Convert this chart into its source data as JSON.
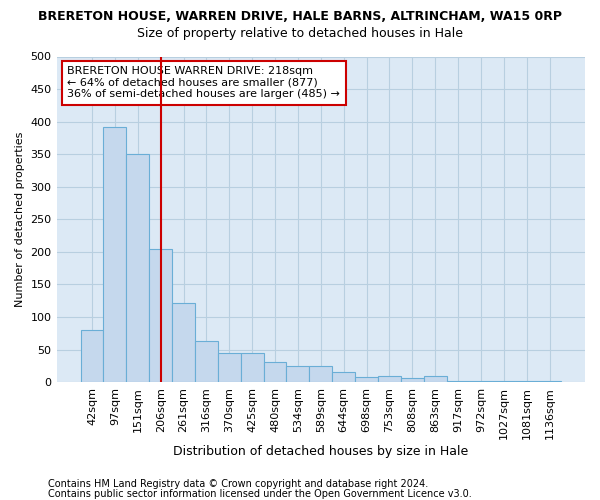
{
  "title1": "BRERETON HOUSE, WARREN DRIVE, HALE BARNS, ALTRINCHAM, WA15 0RP",
  "title2": "Size of property relative to detached houses in Hale",
  "xlabel": "Distribution of detached houses by size in Hale",
  "ylabel": "Number of detached properties",
  "footnote1": "Contains HM Land Registry data © Crown copyright and database right 2024.",
  "footnote2": "Contains public sector information licensed under the Open Government Licence v3.0.",
  "bar_labels": [
    "42sqm",
    "97sqm",
    "151sqm",
    "206sqm",
    "261sqm",
    "316sqm",
    "370sqm",
    "425sqm",
    "480sqm",
    "534sqm",
    "589sqm",
    "644sqm",
    "698sqm",
    "753sqm",
    "808sqm",
    "863sqm",
    "917sqm",
    "972sqm",
    "1027sqm",
    "1081sqm",
    "1136sqm"
  ],
  "bar_values": [
    80,
    392,
    350,
    205,
    122,
    63,
    44,
    44,
    31,
    25,
    25,
    15,
    8,
    10,
    7,
    10,
    2,
    2,
    2,
    1,
    2
  ],
  "bar_color": "#c5d8ed",
  "bar_edge_color": "#6aaed6",
  "vline_x": 3.0,
  "vline_color": "#cc0000",
  "vline_label_line1": "BRERETON HOUSE WARREN DRIVE: 218sqm",
  "vline_label_line2": "← 64% of detached houses are smaller (877)",
  "vline_label_line3": "36% of semi-detached houses are larger (485) →",
  "annotation_box_color": "#cc0000",
  "ylim": [
    0,
    500
  ],
  "yticks": [
    0,
    50,
    100,
    150,
    200,
    250,
    300,
    350,
    400,
    450,
    500
  ],
  "bg_color": "#dce9f5",
  "plot_bg": "#ffffff",
  "grid_color": "#b8cfe0",
  "title1_fontsize": 9,
  "title2_fontsize": 9,
  "xlabel_fontsize": 9,
  "ylabel_fontsize": 8,
  "tick_fontsize": 8,
  "annot_fontsize": 8,
  "footnote_fontsize": 7
}
